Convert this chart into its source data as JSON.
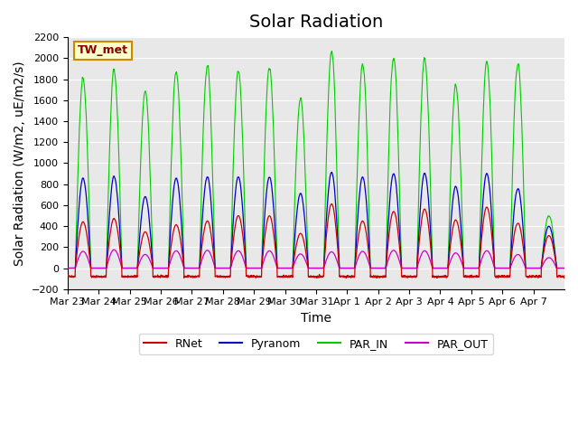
{
  "title": "Solar Radiation",
  "ylabel": "Solar Radiation (W/m2, uE/m2/s)",
  "xlabel": "Time",
  "station_label": "TW_met",
  "ylim": [
    -200,
    2200
  ],
  "yticks": [
    -200,
    0,
    200,
    400,
    600,
    800,
    1000,
    1200,
    1400,
    1600,
    1800,
    2000,
    2200
  ],
  "date_labels": [
    "Mar 23",
    "Mar 24",
    "Mar 25",
    "Mar 26",
    "Mar 27",
    "Mar 28",
    "Mar 29",
    "Mar 30",
    "Mar 31",
    "Apr 1",
    "Apr 2",
    "Apr 3",
    "Apr 4",
    "Apr 5",
    "Apr 6",
    "Apr 7"
  ],
  "colors": {
    "RNet": "#cc0000",
    "Pyranom": "#0000cc",
    "PAR_IN": "#00cc00",
    "PAR_OUT": "#cc00cc"
  },
  "plot_bg_color": "#e8e8e8",
  "legend_labels": [
    "RNet",
    "Pyranom",
    "PAR_IN",
    "PAR_OUT"
  ],
  "title_fontsize": 14,
  "label_fontsize": 10,
  "tick_fontsize": 8,
  "n_days": 16,
  "par_in_peaks": [
    1800,
    1870,
    1680,
    1880,
    1930,
    1880,
    1920,
    1610,
    2050,
    1950,
    2000,
    1980,
    1750,
    1960,
    1960,
    500
  ],
  "pyranom_peaks": [
    855,
    870,
    680,
    860,
    870,
    870,
    870,
    710,
    910,
    870,
    900,
    900,
    780,
    900,
    760,
    400
  ],
  "rnet_peaks": [
    440,
    470,
    345,
    415,
    450,
    500,
    500,
    330,
    610,
    450,
    540,
    560,
    460,
    580,
    430,
    310
  ],
  "par_out_peaks": [
    160,
    175,
    130,
    165,
    170,
    165,
    165,
    135,
    155,
    160,
    170,
    165,
    145,
    165,
    130,
    100
  ]
}
